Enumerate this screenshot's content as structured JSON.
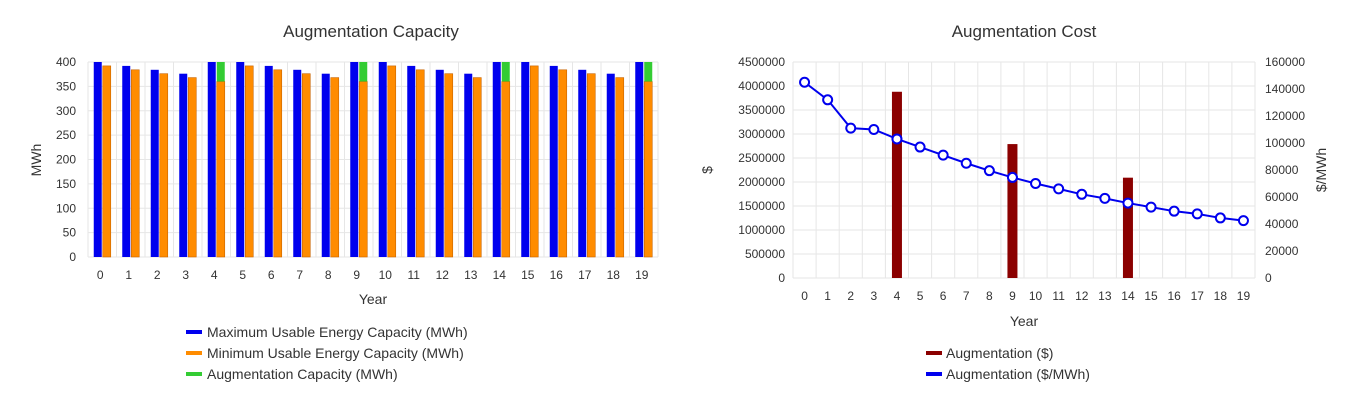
{
  "colors": {
    "max_capacity": "#0000ee",
    "min_capacity": "#ff8c00",
    "augmentation_capacity": "#33cc33",
    "augmentation_cost": "#8b0000",
    "augmentation_cost_per_mwh": "#0000ee"
  },
  "chart_data": [
    {
      "type": "bar",
      "title": "Augmentation Capacity",
      "xlabel": "Year",
      "ylabel": "MWh",
      "ylim": [
        0,
        400
      ],
      "yticks": [
        0,
        50,
        100,
        150,
        200,
        250,
        300,
        350,
        400
      ],
      "categories": [
        "0",
        "1",
        "2",
        "3",
        "4",
        "5",
        "6",
        "7",
        "8",
        "9",
        "10",
        "11",
        "12",
        "13",
        "14",
        "15",
        "16",
        "17",
        "18",
        "19"
      ],
      "grid": true,
      "legend_position": "bottom",
      "series": [
        {
          "name": "Maximum Usable Energy Capacity (MWh)",
          "values": [
            400,
            392,
            384,
            376,
            400,
            400,
            392,
            384,
            376,
            400,
            400,
            392,
            384,
            376,
            400,
            400,
            392,
            384,
            376,
            400
          ]
        },
        {
          "name": "Minimum Usable Energy Capacity (MWh)",
          "values": [
            392,
            384,
            376,
            368,
            360,
            392,
            384,
            376,
            368,
            360,
            392,
            384,
            376,
            368,
            360,
            392,
            384,
            376,
            368,
            360
          ]
        },
        {
          "name": "Augmentation Capacity (MWh)",
          "values": [
            0,
            0,
            0,
            0,
            40,
            0,
            0,
            0,
            0,
            40,
            0,
            0,
            0,
            0,
            40,
            0,
            0,
            0,
            0,
            40
          ]
        }
      ]
    },
    {
      "type": "bar+line",
      "title": "Augmentation Cost",
      "xlabel": "Year",
      "ylabel": "$",
      "y2label": "$/MWh",
      "ylim": [
        0,
        4500000
      ],
      "y2lim": [
        0,
        160000
      ],
      "yticks": [
        0,
        500000,
        1000000,
        1500000,
        2000000,
        2500000,
        3000000,
        3500000,
        4000000,
        4500000
      ],
      "y2ticks": [
        0,
        20000,
        40000,
        60000,
        80000,
        100000,
        120000,
        140000,
        160000
      ],
      "categories": [
        "0",
        "1",
        "2",
        "3",
        "4",
        "5",
        "6",
        "7",
        "8",
        "9",
        "10",
        "11",
        "12",
        "13",
        "14",
        "15",
        "16",
        "17",
        "18",
        "19"
      ],
      "grid": true,
      "legend_position": "bottom",
      "series": [
        {
          "name": "Augmentation ($)",
          "type": "bar",
          "axis": "left",
          "values": [
            0,
            0,
            0,
            0,
            3880000,
            0,
            0,
            0,
            0,
            2790000,
            0,
            0,
            0,
            0,
            2090000,
            0,
            0,
            0,
            0,
            0
          ]
        },
        {
          "name": "Augmentation ($/MWh)",
          "type": "line",
          "axis": "right",
          "values": [
            145000,
            132000,
            111000,
            110000,
            103000,
            97000,
            91000,
            85000,
            79500,
            74500,
            70000,
            66000,
            62000,
            59000,
            55500,
            52500,
            49500,
            47500,
            44500,
            42500
          ]
        }
      ]
    }
  ]
}
